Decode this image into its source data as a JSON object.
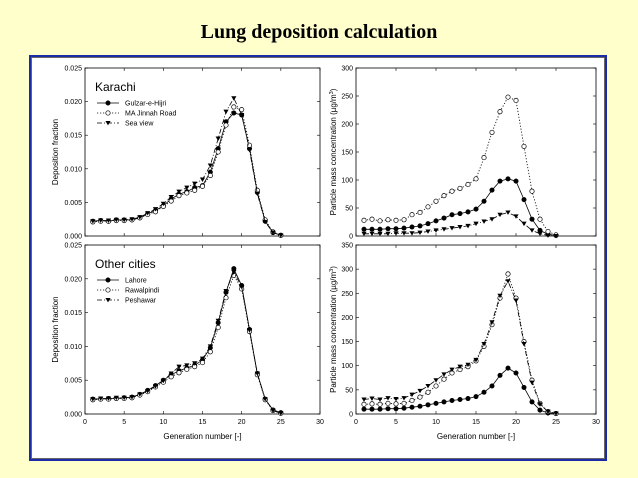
{
  "slide": {
    "title": "Lung deposition calculation"
  },
  "chart_data": [
    {
      "id": "karachi-deposition",
      "type": "line",
      "panel_label": "Karachi",
      "xlabel": "",
      "ylabel": "Deposition fraction",
      "xlim": [
        0,
        30
      ],
      "ylim": [
        0,
        0.025
      ],
      "yticks": [
        "0.000",
        "0.005",
        "0.010",
        "0.015",
        "0.020",
        "0.025"
      ],
      "xticks": [],
      "legend": "upper-left",
      "series": [
        {
          "name": "Gulzar-e-Hijri",
          "marker": "filled-circle",
          "line": "solid",
          "x": [
            1,
            2,
            3,
            4,
            5,
            6,
            7,
            8,
            9,
            10,
            11,
            12,
            13,
            14,
            15,
            16,
            17,
            18,
            19,
            20,
            21,
            22,
            23,
            24,
            25
          ],
          "y": [
            0.0022,
            0.0023,
            0.0022,
            0.0024,
            0.0024,
            0.0024,
            0.0027,
            0.0033,
            0.0038,
            0.0045,
            0.0055,
            0.0062,
            0.0066,
            0.0072,
            0.0075,
            0.0095,
            0.013,
            0.017,
            0.0183,
            0.018,
            0.013,
            0.0065,
            0.0022,
            0.0005,
            0.0001
          ]
        },
        {
          "name": "MA Jinnah Road",
          "marker": "open-circle",
          "line": "dotted",
          "x": [
            1,
            2,
            3,
            4,
            5,
            6,
            7,
            8,
            9,
            10,
            11,
            12,
            13,
            14,
            15,
            16,
            17,
            18,
            19,
            20,
            21,
            22,
            23,
            24,
            25
          ],
          "y": [
            0.0021,
            0.0022,
            0.0022,
            0.0023,
            0.0023,
            0.0024,
            0.0027,
            0.0032,
            0.0036,
            0.0044,
            0.0052,
            0.006,
            0.0064,
            0.0068,
            0.0074,
            0.009,
            0.0125,
            0.0165,
            0.0192,
            0.0188,
            0.0135,
            0.0068,
            0.0024,
            0.0006,
            0.0001
          ]
        },
        {
          "name": "Sea view",
          "marker": "filled-triangle-down",
          "line": "dash-dot",
          "x": [
            1,
            2,
            3,
            4,
            5,
            6,
            7,
            8,
            9,
            10,
            11,
            12,
            13,
            14,
            15,
            16,
            17,
            18,
            19,
            20,
            21,
            22,
            23,
            24,
            25
          ],
          "y": [
            0.0022,
            0.0023,
            0.0023,
            0.0024,
            0.0024,
            0.0025,
            0.0028,
            0.0034,
            0.004,
            0.0048,
            0.0058,
            0.0066,
            0.0072,
            0.0078,
            0.0084,
            0.0105,
            0.0145,
            0.0185,
            0.0205,
            0.018,
            0.0128,
            0.0063,
            0.0021,
            0.0005,
            0.0001
          ]
        }
      ]
    },
    {
      "id": "karachi-concentration",
      "type": "line",
      "panel_label": "",
      "xlabel": "",
      "ylabel": "Particle mass concentration (µg/m",
      "ylabel_sup": "3",
      "ylabel_end": ")",
      "xlim": [
        0,
        30
      ],
      "ylim": [
        0,
        300
      ],
      "yticks": [
        "0",
        "50",
        "100",
        "150",
        "200",
        "250",
        "300"
      ],
      "xticks": [],
      "series": [
        {
          "name": "Gulzar-e-Hijri",
          "marker": "filled-circle",
          "line": "solid",
          "x": [
            1,
            2,
            3,
            4,
            5,
            6,
            7,
            8,
            9,
            10,
            11,
            12,
            13,
            14,
            15,
            16,
            17,
            18,
            19,
            20,
            21,
            22,
            23,
            24,
            25
          ],
          "y": [
            12,
            12,
            12,
            13,
            13,
            14,
            16,
            18,
            22,
            27,
            32,
            38,
            40,
            43,
            48,
            62,
            82,
            98,
            102,
            98,
            65,
            30,
            10,
            3,
            1
          ]
        },
        {
          "name": "MA Jinnah Road",
          "marker": "open-circle",
          "line": "dotted",
          "x": [
            1,
            2,
            3,
            4,
            5,
            6,
            7,
            8,
            9,
            10,
            11,
            12,
            13,
            14,
            15,
            16,
            17,
            18,
            19,
            20,
            21,
            22,
            23,
            24,
            25
          ],
          "y": [
            28,
            30,
            27,
            29,
            28,
            29,
            38,
            42,
            52,
            62,
            72,
            80,
            85,
            92,
            102,
            140,
            185,
            222,
            248,
            242,
            160,
            80,
            30,
            8,
            2
          ]
        },
        {
          "name": "Sea view",
          "marker": "filled-triangle-down",
          "line": "dash-dot",
          "x": [
            1,
            2,
            3,
            4,
            5,
            6,
            7,
            8,
            9,
            10,
            11,
            12,
            13,
            14,
            15,
            16,
            17,
            18,
            19,
            20,
            21,
            22,
            23,
            24,
            25
          ],
          "y": [
            4,
            4,
            4,
            4,
            5,
            5,
            5,
            6,
            8,
            10,
            12,
            14,
            16,
            18,
            22,
            26,
            30,
            38,
            42,
            35,
            22,
            10,
            4,
            1,
            0
          ]
        }
      ]
    },
    {
      "id": "other-cities-deposition",
      "type": "line",
      "panel_label": "Other cities",
      "xlabel": "Generation number [-]",
      "ylabel": "Deposition fraction",
      "xlim": [
        0,
        30
      ],
      "ylim": [
        0,
        0.025
      ],
      "yticks": [
        "0.000",
        "0.005",
        "0.010",
        "0.015",
        "0.020",
        "0.025"
      ],
      "xticks": [
        "0",
        "5",
        "10",
        "15",
        "20",
        "25",
        "30"
      ],
      "legend": "upper-left",
      "series": [
        {
          "name": "Lahore",
          "marker": "filled-circle",
          "line": "solid",
          "x": [
            1,
            2,
            3,
            4,
            5,
            6,
            7,
            8,
            9,
            10,
            11,
            12,
            13,
            14,
            15,
            16,
            17,
            18,
            19,
            20,
            21,
            22,
            23,
            24,
            25
          ],
          "y": [
            0.0022,
            0.0022,
            0.0023,
            0.0023,
            0.0024,
            0.0025,
            0.0029,
            0.0035,
            0.0042,
            0.005,
            0.0058,
            0.0064,
            0.0068,
            0.0072,
            0.008,
            0.0098,
            0.0135,
            0.018,
            0.0215,
            0.019,
            0.0125,
            0.006,
            0.0022,
            0.0006,
            0.0002
          ]
        },
        {
          "name": "Rawalpindi",
          "marker": "open-circle",
          "line": "dotted",
          "x": [
            1,
            2,
            3,
            4,
            5,
            6,
            7,
            8,
            9,
            10,
            11,
            12,
            13,
            14,
            15,
            16,
            17,
            18,
            19,
            20,
            21,
            22,
            23,
            24,
            25
          ],
          "y": [
            0.0021,
            0.0022,
            0.0022,
            0.0023,
            0.0023,
            0.0024,
            0.0028,
            0.0033,
            0.004,
            0.0047,
            0.0055,
            0.0061,
            0.0066,
            0.007,
            0.0076,
            0.0092,
            0.0128,
            0.0172,
            0.0205,
            0.0185,
            0.0122,
            0.0058,
            0.0021,
            0.0005,
            0.0001
          ]
        },
        {
          "name": "Peshawar",
          "marker": "filled-triangle-down",
          "line": "dash-dot",
          "x": [
            1,
            2,
            3,
            4,
            5,
            6,
            7,
            8,
            9,
            10,
            11,
            12,
            13,
            14,
            15,
            16,
            17,
            18,
            19,
            20,
            21,
            22,
            23,
            24,
            25
          ],
          "y": [
            0.0022,
            0.0023,
            0.0023,
            0.0024,
            0.0024,
            0.0025,
            0.0029,
            0.0034,
            0.0041,
            0.0049,
            0.006,
            0.007,
            0.0072,
            0.0075,
            0.0082,
            0.01,
            0.0138,
            0.0182,
            0.021,
            0.0188,
            0.0124,
            0.006,
            0.0022,
            0.0005,
            0.0001
          ]
        }
      ]
    },
    {
      "id": "other-cities-concentration",
      "type": "line",
      "panel_label": "",
      "xlabel": "Generation number [-]",
      "ylabel": "Particle mass concentration (µg/m",
      "ylabel_sup": "3",
      "ylabel_end": ")",
      "xlim": [
        0,
        30
      ],
      "ylim": [
        0,
        350
      ],
      "yticks": [
        "0",
        "50",
        "100",
        "150",
        "200",
        "250",
        "300",
        "350"
      ],
      "xticks": [
        "0",
        "5",
        "10",
        "15",
        "20",
        "25",
        "30"
      ],
      "series": [
        {
          "name": "Lahore",
          "marker": "filled-circle",
          "line": "solid",
          "x": [
            1,
            2,
            3,
            4,
            5,
            6,
            7,
            8,
            9,
            10,
            11,
            12,
            13,
            14,
            15,
            16,
            17,
            18,
            19,
            20,
            21,
            22,
            23,
            24,
            25
          ],
          "y": [
            10,
            10,
            10,
            11,
            11,
            12,
            14,
            16,
            19,
            22,
            25,
            28,
            30,
            32,
            36,
            45,
            58,
            80,
            95,
            85,
            55,
            25,
            8,
            2,
            1
          ]
        },
        {
          "name": "Rawalpindi",
          "marker": "open-circle",
          "line": "dotted",
          "x": [
            1,
            2,
            3,
            4,
            5,
            6,
            7,
            8,
            9,
            10,
            11,
            12,
            13,
            14,
            15,
            16,
            17,
            18,
            19,
            20,
            21,
            22,
            23,
            24,
            25
          ],
          "y": [
            20,
            21,
            20,
            22,
            21,
            22,
            28,
            35,
            45,
            58,
            72,
            85,
            92,
            98,
            110,
            140,
            185,
            240,
            290,
            240,
            150,
            70,
            22,
            5,
            1
          ]
        },
        {
          "name": "Peshawar",
          "marker": "filled-triangle-down",
          "line": "dash-dot",
          "x": [
            1,
            2,
            3,
            4,
            5,
            6,
            7,
            8,
            9,
            10,
            11,
            12,
            13,
            14,
            15,
            16,
            17,
            18,
            19,
            20,
            21,
            22,
            23,
            24,
            25
          ],
          "y": [
            30,
            32,
            30,
            33,
            31,
            33,
            40,
            48,
            58,
            70,
            82,
            92,
            98,
            102,
            112,
            145,
            190,
            245,
            275,
            235,
            145,
            65,
            20,
            5,
            1
          ]
        }
      ]
    }
  ]
}
